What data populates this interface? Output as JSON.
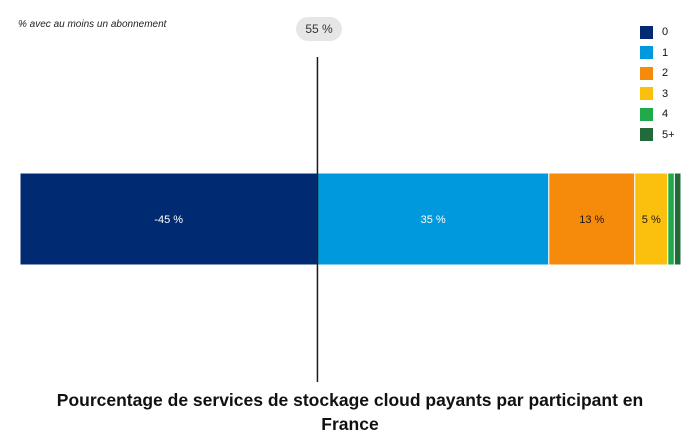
{
  "chart_data": {
    "type": "bar",
    "orientation": "horizontal-stacked-diverging",
    "title": "Pourcentage de services de stockage cloud payants par participant en France",
    "subtitle": "% avec au moins un abonnement",
    "reference": {
      "label": "55 %",
      "value": 55
    },
    "series": [
      {
        "name": "0",
        "value": -45,
        "label": "-45 %",
        "color": "#002b73"
      },
      {
        "name": "1",
        "value": 35,
        "label": "35 %",
        "color": "#0099dd"
      },
      {
        "name": "2",
        "value": 13,
        "label": "13 %",
        "color": "#f58a0b"
      },
      {
        "name": "3",
        "value": 5,
        "label": "5 %",
        "color": "#fbbf0e"
      },
      {
        "name": "4",
        "value": 1,
        "label": "",
        "color": "#1faa4b"
      },
      {
        "name": "5+",
        "value": 1,
        "label": "",
        "color": "#216b3a"
      }
    ],
    "xlim": [
      -45,
      55
    ],
    "legend_position": "top-right"
  }
}
